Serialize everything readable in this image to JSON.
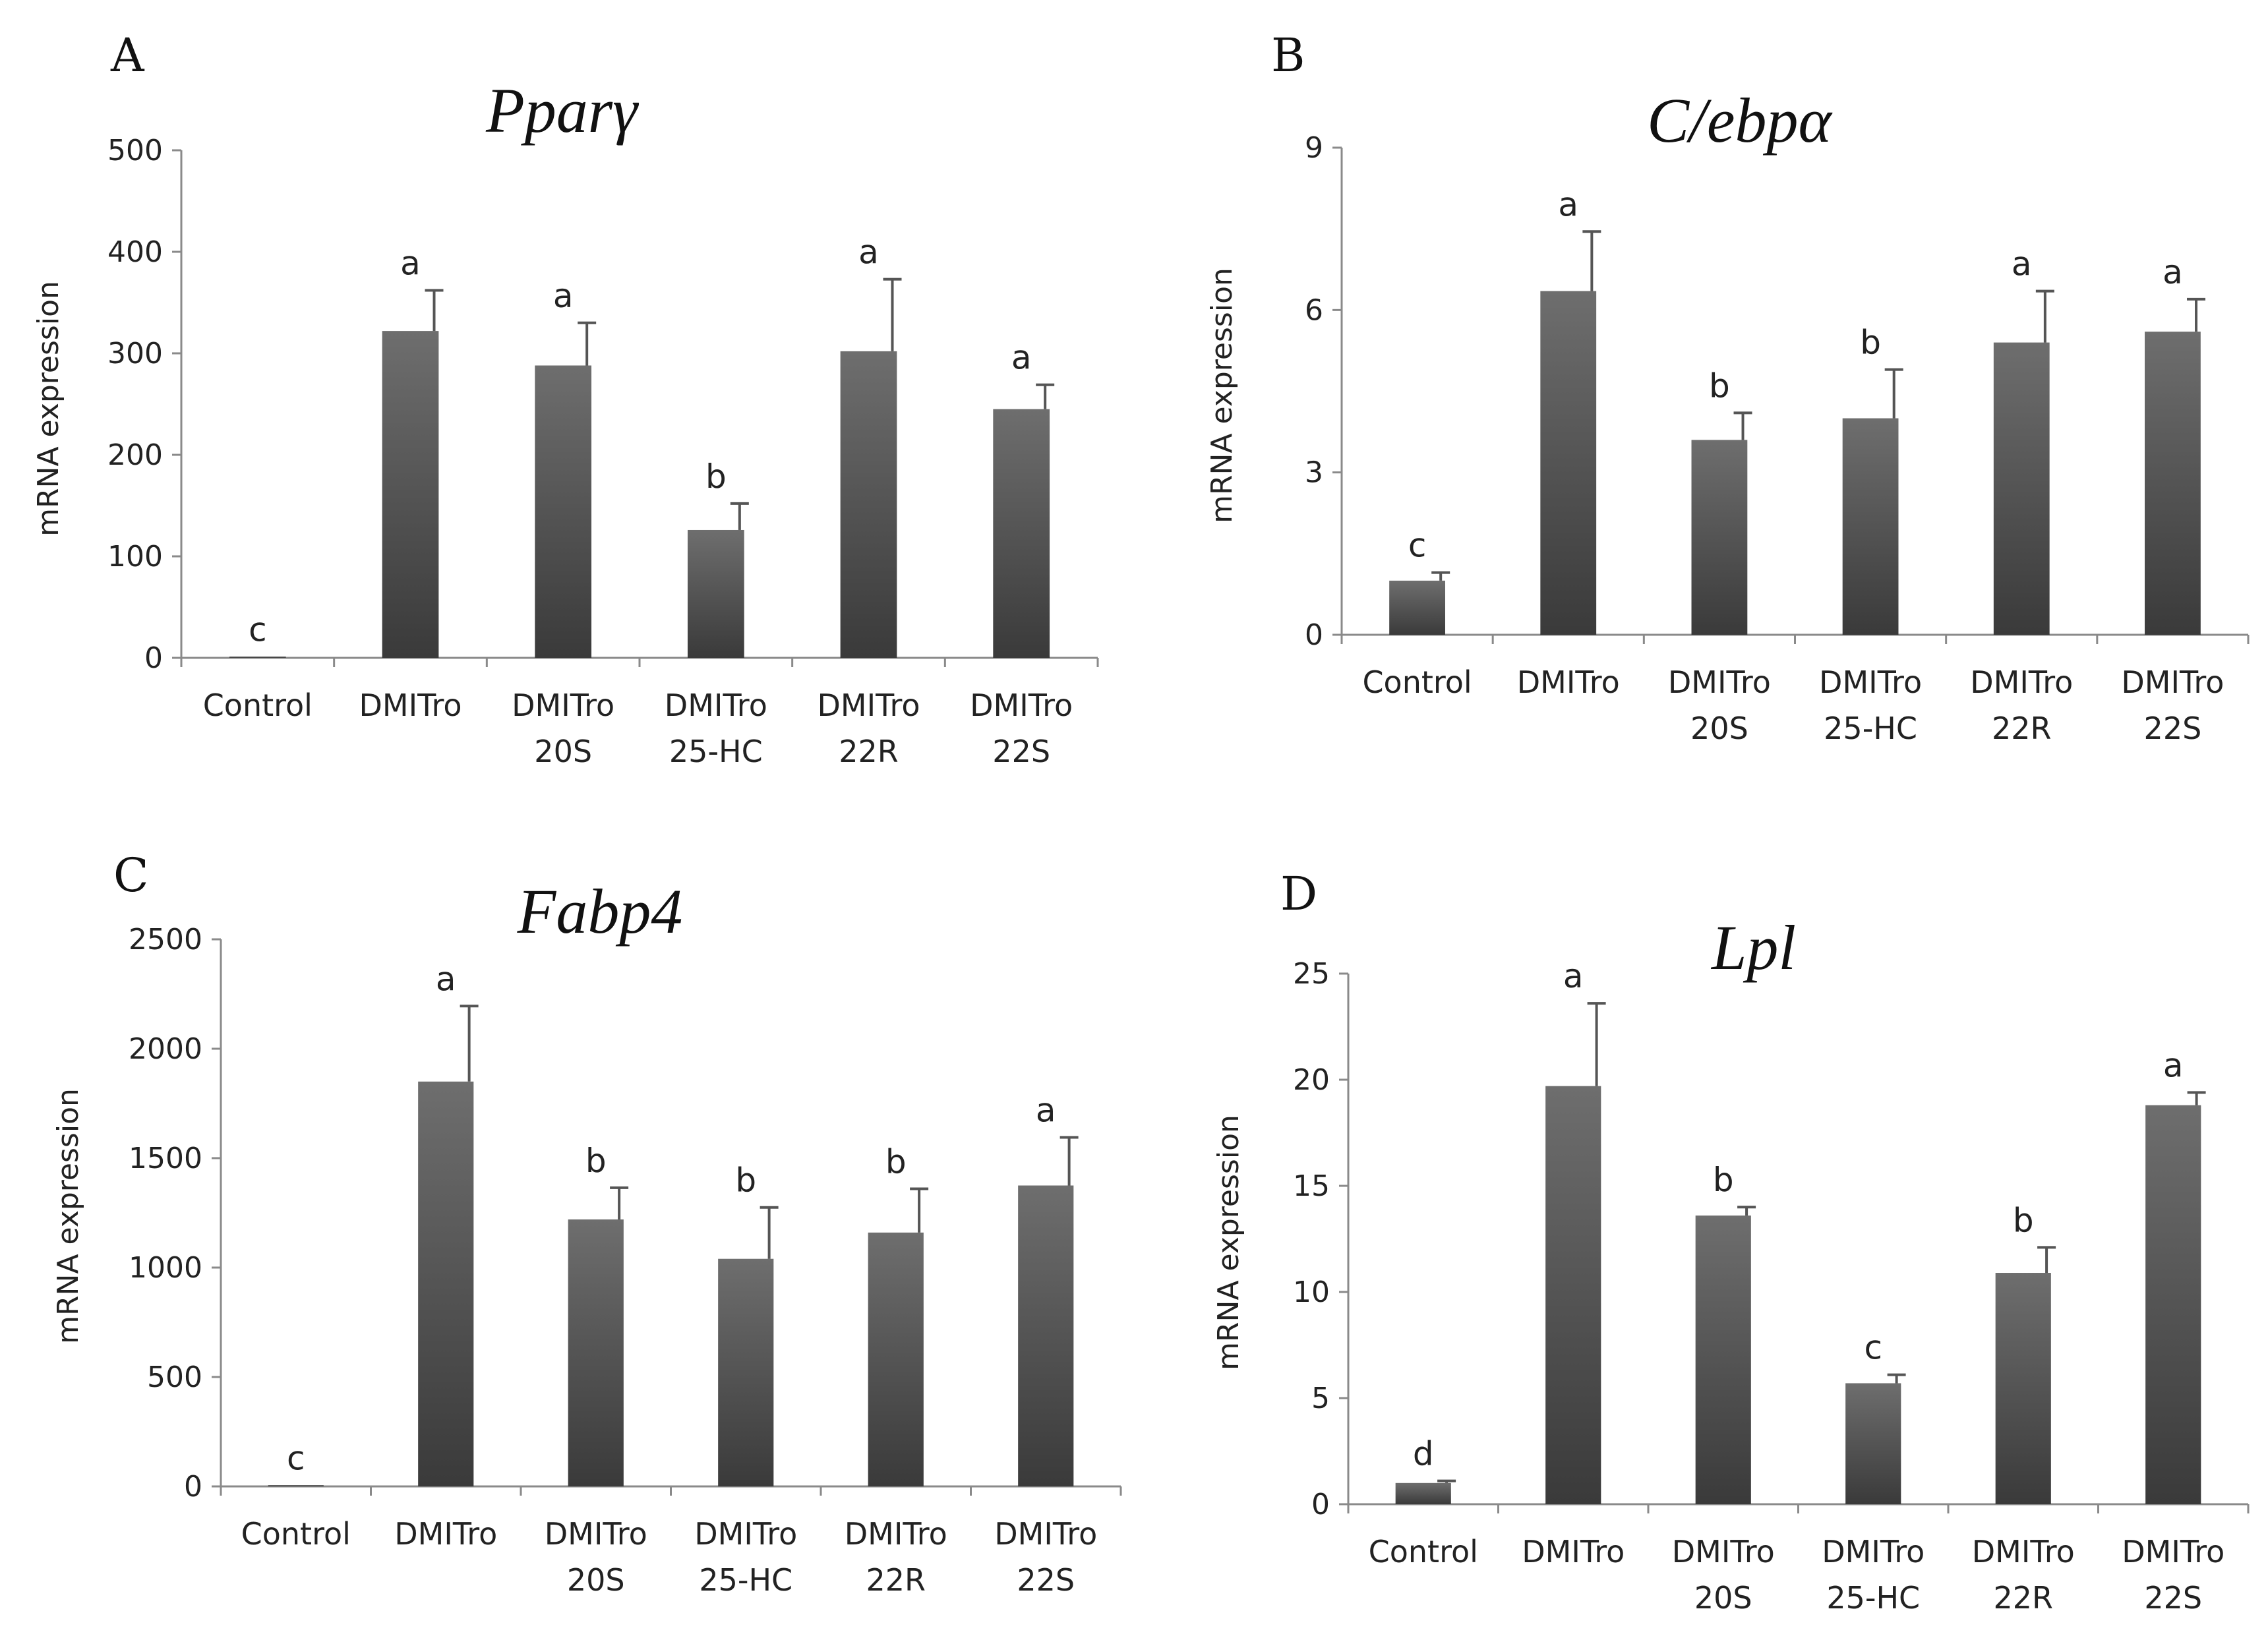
{
  "chart_data": [
    {
      "type": "bar",
      "panel": "A",
      "title": "Pparγ",
      "xlabel": "",
      "ylabel": "mRNA expression",
      "ylim": [
        0,
        500
      ],
      "yticks": [
        0,
        100,
        200,
        300,
        400,
        500
      ],
      "categories": [
        [
          "Control"
        ],
        [
          "DMITro"
        ],
        [
          "DMITro",
          "20S"
        ],
        [
          "DMITro",
          "25-HC"
        ],
        [
          "DMITro",
          "22R"
        ],
        [
          "DMITro",
          "22S"
        ]
      ],
      "values": [
        1,
        322,
        288,
        126,
        302,
        245
      ],
      "errors": [
        0,
        40,
        42,
        26,
        71,
        24
      ],
      "labels": [
        "c",
        "a",
        "a",
        "b",
        "a",
        "a"
      ]
    },
    {
      "type": "bar",
      "panel": "B",
      "title": "C/ebpα",
      "xlabel": "",
      "ylabel": "mRNA expression",
      "ylim": [
        0,
        9
      ],
      "yticks": [
        0,
        3,
        6,
        9
      ],
      "categories": [
        [
          "Control"
        ],
        [
          "DMITro"
        ],
        [
          "DMITro",
          "20S"
        ],
        [
          "DMITro",
          "25-HC"
        ],
        [
          "DMITro",
          "22R"
        ],
        [
          "DMITro",
          "22S"
        ]
      ],
      "values": [
        1.0,
        6.35,
        3.6,
        4.0,
        5.4,
        5.6
      ],
      "errors": [
        0.15,
        1.1,
        0.5,
        0.9,
        0.95,
        0.6
      ],
      "labels": [
        "c",
        "a",
        "b",
        "b",
        "a",
        "a"
      ]
    },
    {
      "type": "bar",
      "panel": "C",
      "title": "Fabp4",
      "xlabel": "",
      "ylabel": "mRNA expression",
      "ylim": [
        0,
        2500
      ],
      "yticks": [
        0,
        500,
        1000,
        1500,
        2000,
        2500
      ],
      "categories": [
        [
          "Control"
        ],
        [
          "DMITro"
        ],
        [
          "DMITro",
          "20S"
        ],
        [
          "DMITro",
          "25-HC"
        ],
        [
          "DMITro",
          "22R"
        ],
        [
          "DMITro",
          "22S"
        ]
      ],
      "values": [
        5,
        1850,
        1220,
        1040,
        1160,
        1375
      ],
      "errors": [
        0,
        345,
        145,
        235,
        200,
        220
      ],
      "labels": [
        "c",
        "a",
        "b",
        "b",
        "b",
        "a"
      ]
    },
    {
      "type": "bar",
      "panel": "D",
      "title": "Lpl",
      "xlabel": "",
      "ylabel": "mRNA expression",
      "ylim": [
        0,
        25
      ],
      "yticks": [
        0,
        5,
        10,
        15,
        20,
        25
      ],
      "categories": [
        [
          "Control"
        ],
        [
          "DMITro"
        ],
        [
          "DMITro",
          "20S"
        ],
        [
          "DMITro",
          "25-HC"
        ],
        [
          "DMITro",
          "22R"
        ],
        [
          "DMITro",
          "22S"
        ]
      ],
      "values": [
        1.0,
        19.7,
        13.6,
        5.7,
        10.9,
        18.8
      ],
      "errors": [
        0.1,
        3.9,
        0.4,
        0.4,
        1.2,
        0.6
      ],
      "labels": [
        "d",
        "a",
        "b",
        "c",
        "b",
        "a"
      ]
    }
  ],
  "colors": {
    "bar_top": "#6e6e6e",
    "bar_bottom": "#3a3a3a",
    "axis": "#8a8a8a",
    "error": "#555555"
  }
}
